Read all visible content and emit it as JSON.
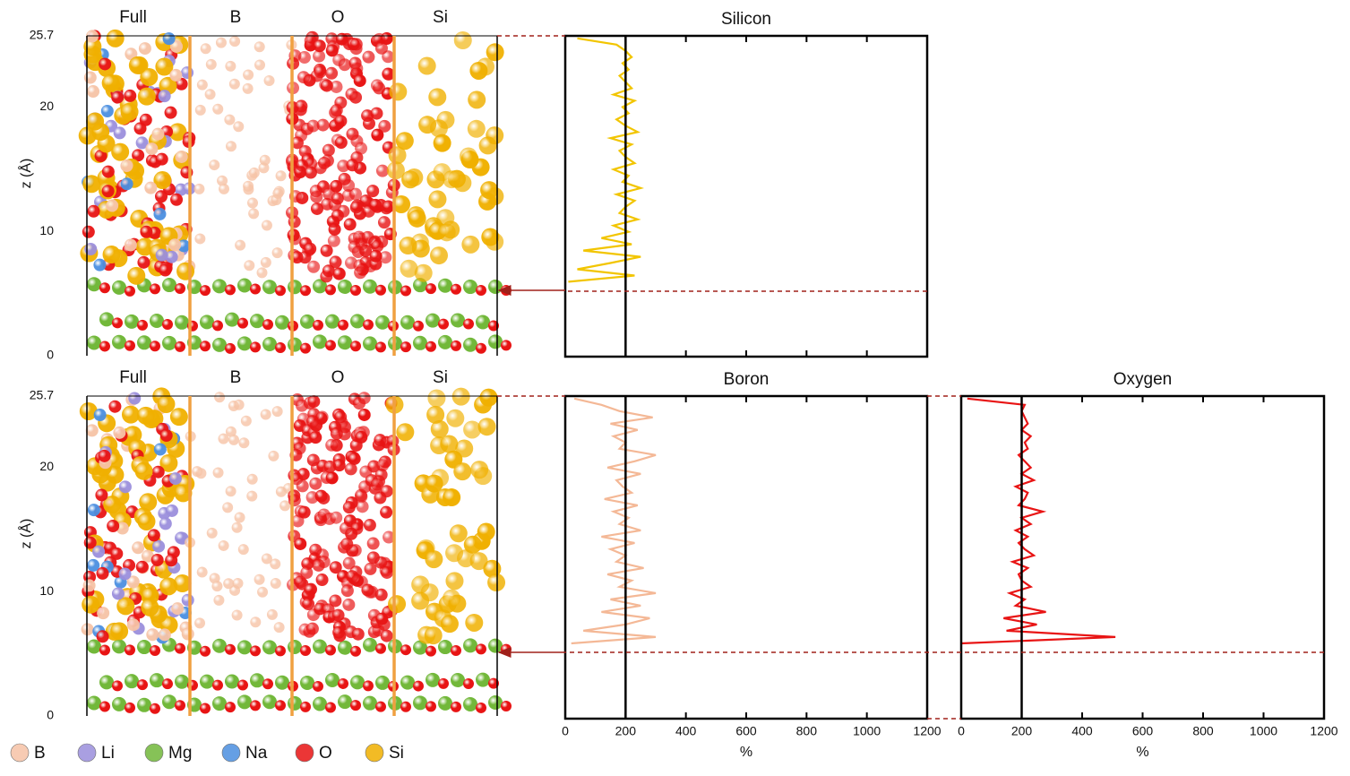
{
  "panels": {
    "columns": [
      "Full",
      "B",
      "O",
      "Si"
    ],
    "z_label": "z (Å)",
    "zlim": [
      0,
      25.7
    ],
    "zticks": [
      0,
      10,
      20,
      25.7
    ]
  },
  "legend": [
    {
      "label": "B",
      "color": "#f6c3a6"
    },
    {
      "label": "Li",
      "color": "#9b8fdc"
    },
    {
      "label": "Mg",
      "color": "#72b83a"
    },
    {
      "label": "Na",
      "color": "#4b8fe0"
    },
    {
      "label": "O",
      "color": "#e81414"
    },
    {
      "label": "Si",
      "color": "#f0b000"
    }
  ],
  "chart_data": [
    {
      "type": "line",
      "title": "Silicon",
      "color": "#f2c500",
      "xlim": [
        0,
        1200
      ],
      "xticks": [
        0,
        200,
        400,
        600,
        800,
        1000,
        1200
      ],
      "show_tick_labels": false,
      "ylim": [
        0,
        25.7
      ],
      "ref_x": 200,
      "y": [
        6.0,
        6.5,
        7.0,
        7.5,
        8.0,
        8.5,
        9.0,
        9.5,
        10.0,
        10.5,
        11.0,
        11.5,
        12.0,
        12.5,
        13.0,
        13.5,
        14.0,
        14.5,
        15.0,
        15.5,
        16.0,
        16.5,
        17.0,
        17.5,
        18.0,
        18.5,
        19.0,
        19.5,
        20.0,
        20.5,
        21.0,
        21.5,
        22.0,
        22.5,
        23.0,
        23.5,
        24.0,
        24.5,
        25.0,
        25.5
      ],
      "values": [
        10,
        230,
        40,
        150,
        250,
        60,
        220,
        120,
        210,
        160,
        240,
        180,
        200,
        230,
        170,
        250,
        190,
        210,
        160,
        230,
        200,
        180,
        220,
        150,
        240,
        200,
        170,
        210,
        190,
        230,
        160,
        220,
        200,
        180,
        210,
        190,
        220,
        200,
        170,
        40
      ]
    },
    {
      "type": "line",
      "title": "Boron",
      "color": "#f4b896",
      "xlim": [
        0,
        1200
      ],
      "xticks": [
        0,
        200,
        400,
        600,
        800,
        1000,
        1200
      ],
      "show_tick_labels": true,
      "x_label": "%",
      "ylim": [
        0,
        25.7
      ],
      "ref_x": 200,
      "y": [
        6.0,
        6.5,
        7.0,
        7.5,
        8.0,
        8.5,
        9.0,
        9.5,
        10.0,
        10.5,
        11.0,
        11.5,
        12.0,
        12.5,
        13.0,
        13.5,
        14.0,
        14.5,
        15.0,
        15.5,
        16.0,
        16.5,
        17.0,
        17.5,
        18.0,
        18.5,
        19.0,
        19.5,
        20.0,
        20.5,
        21.0,
        21.5,
        22.0,
        22.5,
        23.0,
        23.5,
        24.0,
        24.5,
        25.0,
        25.5
      ],
      "values": [
        20,
        300,
        60,
        200,
        280,
        120,
        250,
        150,
        300,
        180,
        220,
        140,
        260,
        170,
        200,
        150,
        230,
        120,
        250,
        180,
        210,
        160,
        240,
        130,
        220,
        190,
        170,
        250,
        140,
        230,
        300,
        180,
        200,
        160,
        240,
        150,
        290,
        180,
        120,
        30
      ]
    },
    {
      "type": "line",
      "title": "Oxygen",
      "color": "#e81414",
      "xlim": [
        0,
        1200
      ],
      "xticks": [
        0,
        200,
        400,
        600,
        800,
        1000,
        1200
      ],
      "show_tick_labels": true,
      "x_label": "%",
      "ylim": [
        0,
        25.7
      ],
      "ref_x": 200,
      "y": [
        6.0,
        6.5,
        7.0,
        7.5,
        8.0,
        8.5,
        9.0,
        9.5,
        10.0,
        10.5,
        11.0,
        11.5,
        12.0,
        12.5,
        13.0,
        13.5,
        14.0,
        14.5,
        15.0,
        15.5,
        16.0,
        16.5,
        17.0,
        17.5,
        18.0,
        18.5,
        19.0,
        19.5,
        20.0,
        20.5,
        21.0,
        21.5,
        22.0,
        22.5,
        23.0,
        23.5,
        24.0,
        24.5,
        25.0,
        25.5
      ],
      "values": [
        0,
        510,
        150,
        250,
        140,
        280,
        180,
        210,
        160,
        230,
        200,
        190,
        220,
        170,
        240,
        210,
        190,
        220,
        180,
        230,
        200,
        270,
        190,
        210,
        220,
        180,
        240,
        200,
        230,
        210,
        190,
        220,
        210,
        230,
        200,
        220,
        210,
        200,
        210,
        20
      ]
    }
  ]
}
